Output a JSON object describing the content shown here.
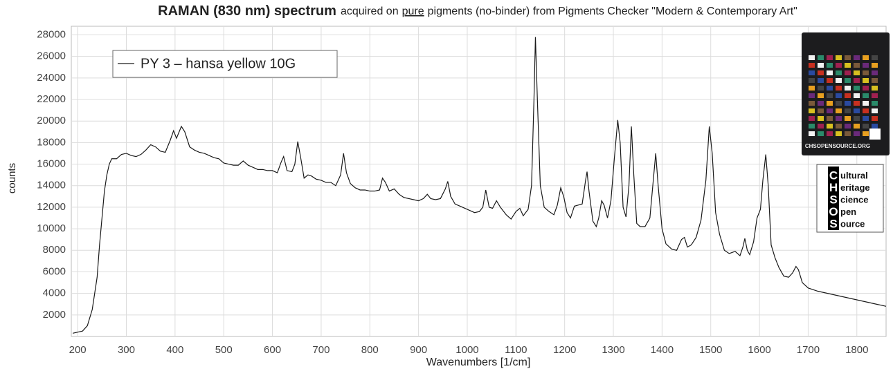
{
  "chart_data": {
    "type": "line",
    "title": {
      "bold": "RAMAN (830 nm) spectrum",
      "pre": "acquired on",
      "underlined": "pure",
      "post": "pigments (no-binder) from Pigments Checker \"Modern & Contemporary Art\""
    },
    "x_label": "Wavenumbers [1/cm]",
    "y_label": "counts",
    "xlim": [
      187,
      1860
    ],
    "ylim": [
      0,
      28800
    ],
    "xticks": [
      200,
      300,
      400,
      500,
      600,
      700,
      800,
      900,
      1000,
      1100,
      1200,
      1300,
      1400,
      1500,
      1600,
      1700,
      1800
    ],
    "yticks": [
      2000,
      4000,
      6000,
      8000,
      10000,
      12000,
      14000,
      16000,
      18000,
      20000,
      22000,
      24000,
      26000,
      28000
    ],
    "grid": true,
    "legend": "upper left",
    "x": [
      190,
      210,
      220,
      230,
      240,
      245,
      250,
      255,
      260,
      265,
      270,
      280,
      290,
      300,
      310,
      320,
      330,
      340,
      350,
      360,
      370,
      380,
      390,
      397,
      403,
      413,
      420,
      430,
      440,
      450,
      460,
      470,
      480,
      490,
      500,
      510,
      520,
      530,
      540,
      550,
      560,
      570,
      580,
      590,
      600,
      610,
      618,
      623,
      630,
      640,
      646,
      652,
      658,
      665,
      673,
      680,
      690,
      700,
      710,
      720,
      730,
      740,
      746,
      752,
      760,
      770,
      780,
      790,
      800,
      810,
      820,
      826,
      832,
      840,
      850,
      860,
      870,
      880,
      890,
      900,
      910,
      918,
      925,
      935,
      945,
      955,
      960,
      966,
      975,
      985,
      995,
      1005,
      1015,
      1025,
      1032,
      1038,
      1045,
      1052,
      1060,
      1068,
      1080,
      1090,
      1100,
      1108,
      1115,
      1125,
      1132,
      1137,
      1140,
      1144,
      1150,
      1158,
      1168,
      1178,
      1185,
      1192,
      1198,
      1205,
      1212,
      1220,
      1228,
      1236,
      1243,
      1246,
      1250,
      1258,
      1265,
      1270,
      1276,
      1281,
      1288,
      1295,
      1302,
      1309,
      1314,
      1320,
      1326,
      1332,
      1337,
      1342,
      1348,
      1355,
      1365,
      1375,
      1382,
      1387,
      1392,
      1400,
      1408,
      1420,
      1430,
      1440,
      1446,
      1452,
      1460,
      1470,
      1480,
      1490,
      1497,
      1503,
      1510,
      1518,
      1528,
      1538,
      1550,
      1560,
      1566,
      1570,
      1575,
      1580,
      1588,
      1595,
      1602,
      1607,
      1613,
      1618,
      1624,
      1632,
      1640,
      1650,
      1660,
      1668,
      1675,
      1680,
      1688,
      1700,
      1720,
      1740,
      1760,
      1780,
      1800,
      1820,
      1840,
      1860
    ],
    "series": [
      {
        "name": "PY 3 – hansa yellow 10G",
        "color": "#1a1a1a",
        "values": [
          300,
          500,
          1000,
          2500,
          5500,
          8500,
          11000,
          13500,
          15000,
          16000,
          16500,
          16500,
          16900,
          17000,
          16800,
          16700,
          16900,
          17300,
          17800,
          17600,
          17200,
          17100,
          18200,
          19100,
          18400,
          19500,
          19000,
          17600,
          17300,
          17100,
          17000,
          16800,
          16600,
          16500,
          16100,
          16000,
          15900,
          15900,
          16300,
          15900,
          15700,
          15500,
          15500,
          15400,
          15400,
          15200,
          16200,
          16700,
          15400,
          15300,
          16000,
          18100,
          16600,
          14700,
          15000,
          14900,
          14600,
          14500,
          14300,
          14300,
          14000,
          15000,
          17000,
          15200,
          14200,
          13800,
          13600,
          13600,
          13500,
          13500,
          13600,
          14700,
          14300,
          13500,
          13700,
          13200,
          12900,
          12800,
          12700,
          12600,
          12800,
          13200,
          12800,
          12700,
          12800,
          13700,
          14400,
          13000,
          12300,
          12100,
          11900,
          11700,
          11500,
          11600,
          12000,
          13600,
          12000,
          11900,
          12600,
          12000,
          11300,
          10900,
          11600,
          11900,
          11200,
          11800,
          14000,
          22000,
          27800,
          22000,
          14000,
          12000,
          11600,
          11300,
          12200,
          13800,
          13000,
          11500,
          11000,
          12100,
          12200,
          12300,
          14500,
          15300,
          13500,
          10700,
          10200,
          11000,
          12600,
          12200,
          11000,
          12600,
          16500,
          20100,
          18000,
          12000,
          11100,
          14000,
          19500,
          15000,
          10500,
          10200,
          10200,
          11000,
          14500,
          17000,
          14000,
          10000,
          8600,
          8100,
          8000,
          9000,
          9200,
          8300,
          8500,
          9200,
          10800,
          14500,
          19500,
          17000,
          11500,
          9500,
          8000,
          7700,
          7900,
          7500,
          8300,
          9100,
          8000,
          7600,
          8800,
          11000,
          11800,
          14500,
          16900,
          14000,
          8500,
          7300,
          6400,
          5600,
          5500,
          5900,
          6500,
          6200,
          5000,
          4500,
          4200,
          4000,
          3800,
          3600,
          3400,
          3200,
          3000,
          2800
        ]
      }
    ],
    "logo": {
      "site": "CHSOPENSOURCE.ORG",
      "rows": [
        {
          "initial": "C",
          "rest": "ultural"
        },
        {
          "initial": "H",
          "rest": "eritage"
        },
        {
          "initial": "S",
          "rest": "cience"
        },
        {
          "initial": "O",
          "rest": "pen"
        },
        {
          "initial": "S",
          "rest": "ource"
        }
      ]
    }
  }
}
